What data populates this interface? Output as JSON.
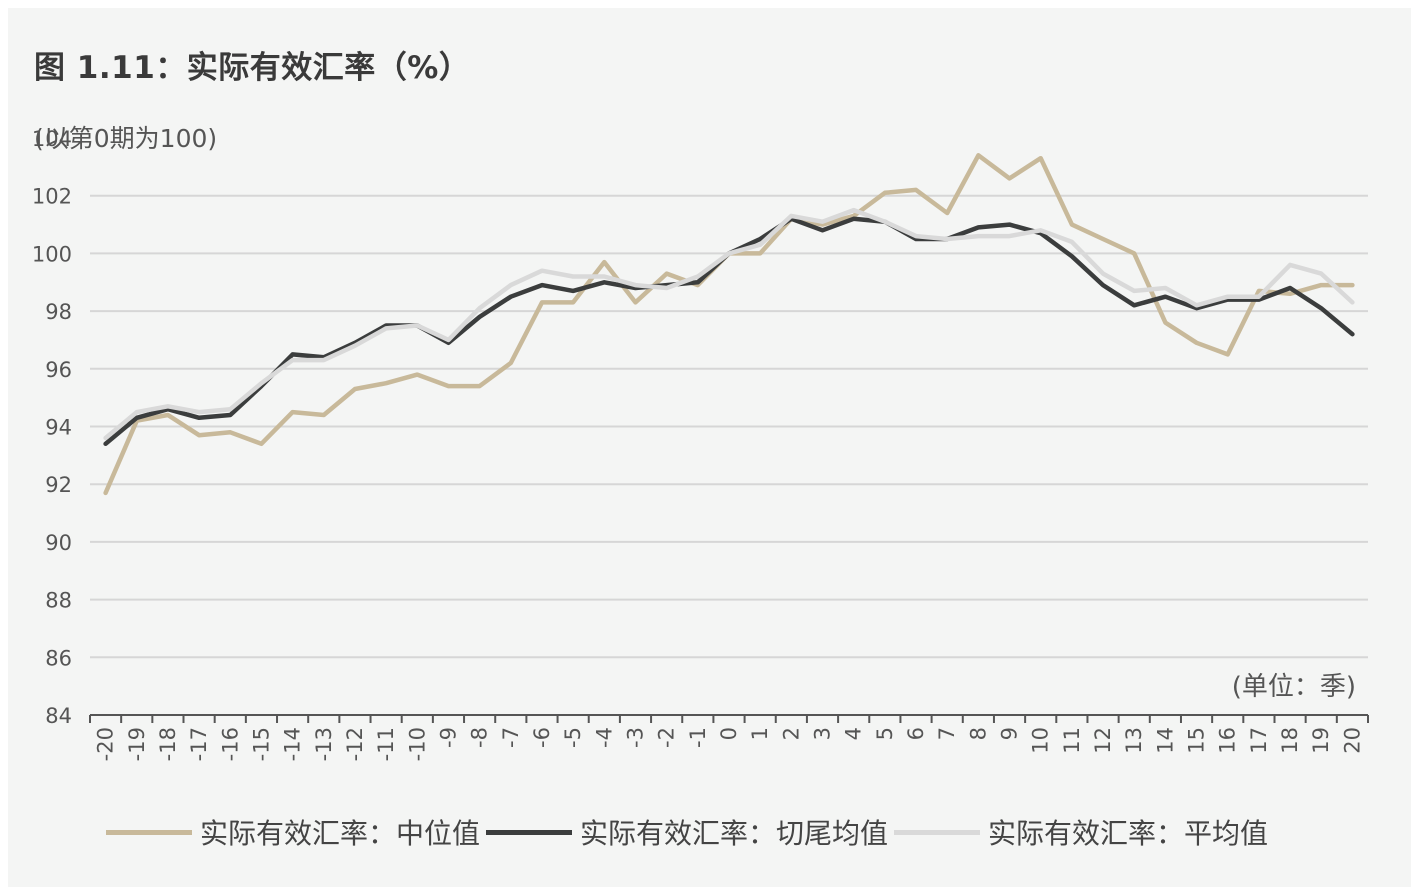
{
  "title": "图 1.11：实际有效汇率（%）",
  "chart_data": {
    "type": "line",
    "ylabel": "(以第0期为100)",
    "xunit": "(单位：季)",
    "ylim": [
      84,
      104
    ],
    "yticks": [
      84,
      86,
      88,
      90,
      92,
      94,
      96,
      98,
      100,
      102,
      104
    ],
    "grid": true,
    "legend_position": "bottom",
    "x": [
      -20,
      -19,
      -18,
      -17,
      -16,
      -15,
      -14,
      -13,
      -12,
      -11,
      -10,
      -9,
      -8,
      -7,
      -6,
      -5,
      -4,
      -3,
      -2,
      -1,
      0,
      1,
      2,
      3,
      4,
      5,
      6,
      7,
      8,
      9,
      10,
      11,
      12,
      13,
      14,
      15,
      16,
      17,
      18,
      19,
      20
    ],
    "series": [
      {
        "name": "实际有效汇率：中位值",
        "color": "#c8b99a",
        "values": [
          91.7,
          94.2,
          94.4,
          93.7,
          93.8,
          93.4,
          94.5,
          94.4,
          95.3,
          95.5,
          95.8,
          95.4,
          95.4,
          96.2,
          98.3,
          98.3,
          99.7,
          98.3,
          99.3,
          98.9,
          100.0,
          100.0,
          101.2,
          101.0,
          101.3,
          102.1,
          102.2,
          101.4,
          103.4,
          102.6,
          103.3,
          101.0,
          100.5,
          100.0,
          97.6,
          96.9,
          96.5,
          98.7,
          98.6,
          98.9,
          98.9
        ]
      },
      {
        "name": "实际有效汇率：切尾均值",
        "color": "#3b3d3d",
        "values": [
          93.4,
          94.3,
          94.6,
          94.3,
          94.4,
          95.4,
          96.5,
          96.4,
          96.9,
          97.5,
          97.5,
          96.9,
          97.8,
          98.5,
          98.9,
          98.7,
          99.0,
          98.8,
          98.9,
          99.0,
          100.0,
          100.5,
          101.2,
          100.8,
          101.2,
          101.1,
          100.5,
          100.5,
          100.9,
          101.0,
          100.7,
          99.9,
          98.9,
          98.2,
          98.5,
          98.1,
          98.4,
          98.4,
          98.8,
          98.1,
          97.2
        ]
      },
      {
        "name": "实际有效汇率：平均值",
        "color": "#d9d9d9",
        "values": [
          93.6,
          94.5,
          94.7,
          94.5,
          94.6,
          95.5,
          96.3,
          96.3,
          96.8,
          97.4,
          97.5,
          97.0,
          98.1,
          98.9,
          99.4,
          99.2,
          99.2,
          98.9,
          98.8,
          99.2,
          100.0,
          100.3,
          101.3,
          101.1,
          101.5,
          101.1,
          100.6,
          100.5,
          100.6,
          100.6,
          100.8,
          100.4,
          99.3,
          98.7,
          98.8,
          98.2,
          98.5,
          98.5,
          99.6,
          99.3,
          98.3
        ]
      }
    ]
  }
}
